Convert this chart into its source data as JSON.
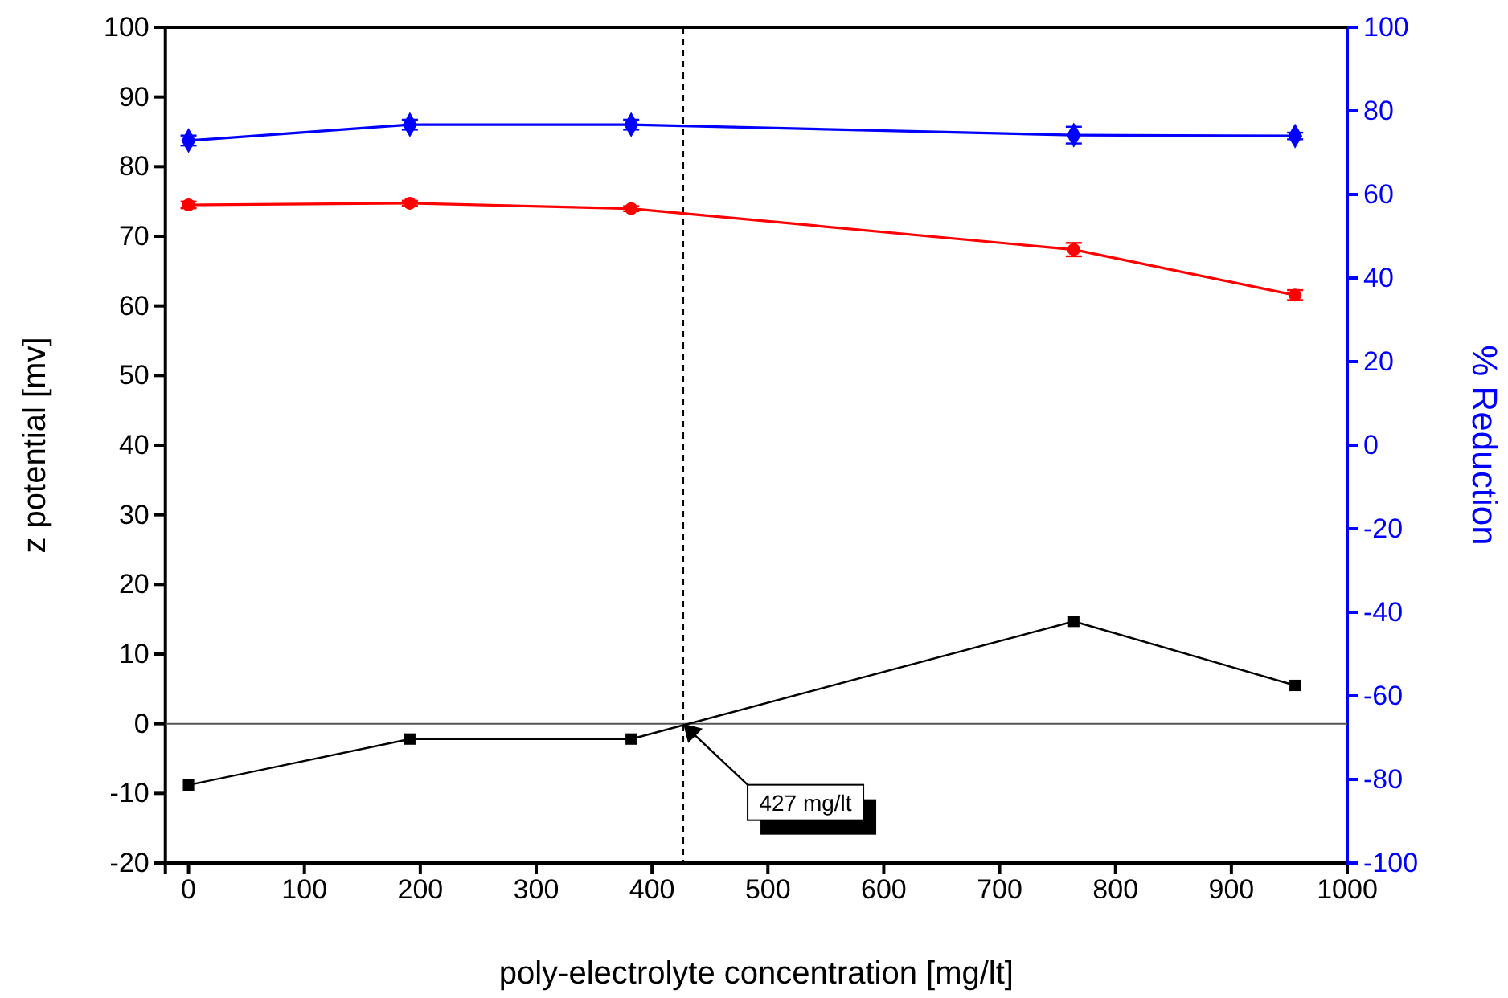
{
  "chart_data": {
    "type": "line",
    "xlabel": "poly-electrolyte concentration [mg/lt]",
    "ylabel": "z potential [mv]",
    "y2label": "% Reduction",
    "x": [
      0,
      191,
      382,
      764,
      955
    ],
    "xlim": [
      -20,
      1000
    ],
    "xticks": [
      0,
      100,
      200,
      300,
      400,
      500,
      600,
      700,
      800,
      900,
      1000
    ],
    "ylim": [
      -20,
      100
    ],
    "yticks": [
      -20,
      -10,
      0,
      10,
      20,
      30,
      40,
      50,
      60,
      70,
      80,
      90,
      100
    ],
    "y2lim": [
      -100,
      100
    ],
    "y2ticks": [
      -100,
      -80,
      -60,
      -40,
      -20,
      0,
      20,
      40,
      60,
      80,
      100
    ],
    "series": [
      {
        "color": "#000000",
        "marker": "square",
        "values": [
          -8.8,
          -2.2,
          -2.2,
          14.7,
          5.5
        ]
      },
      {
        "color": "#ff0000",
        "marker": "circle",
        "axis": "y2",
        "values": [
          57.5,
          57.9,
          56.6,
          46.8,
          35.9
        ],
        "errors": [
          0.8,
          0.6,
          0.6,
          1.6,
          1.2
        ]
      },
      {
        "color": "#0000ff",
        "marker": "diamond",
        "axis": "y2",
        "values": [
          72.9,
          76.7,
          76.7,
          74.2,
          74.0
        ],
        "errors": [
          1.2,
          1.2,
          1.2,
          2.0,
          0.8
        ]
      }
    ],
    "ref_lines": [
      {
        "axis": "x",
        "value": 427,
        "line_style": "dashed",
        "color": "#000000"
      },
      {
        "axis": "y",
        "value": 0,
        "line_style": "solid",
        "color": "#555555"
      }
    ],
    "annotations": [
      {
        "text": "427 mg/lt",
        "x": 427,
        "y": 0
      }
    ],
    "grid": false
  }
}
